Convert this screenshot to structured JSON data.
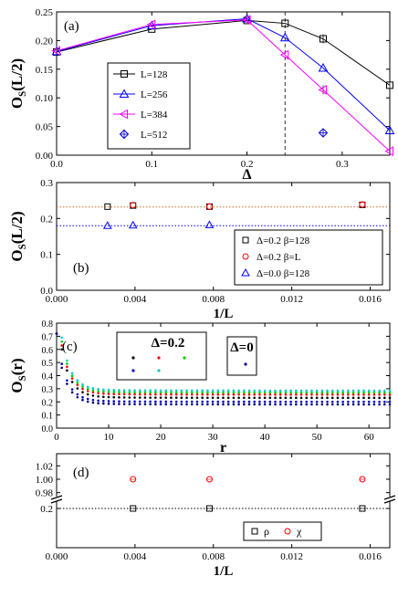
{
  "chart_data": [
    {
      "panel": "(a)",
      "type": "line",
      "xlabel": "Δ",
      "ylabel": "O_S(L/2)",
      "xlim": [
        0.0,
        0.35
      ],
      "ylim": [
        0.0,
        0.25
      ],
      "xticks": [
        0.0,
        0.1,
        0.2,
        0.3
      ],
      "yticks": [
        0.0,
        0.05,
        0.1,
        0.15,
        0.2,
        0.25
      ],
      "vline_x": 0.24,
      "legend_position": "center-left",
      "series": [
        {
          "name": "L=128",
          "color": "#000000",
          "marker": "square",
          "x": [
            0.0,
            0.1,
            0.2,
            0.24,
            0.28,
            0.35
          ],
          "y": [
            0.18,
            0.22,
            0.235,
            0.23,
            0.203,
            0.122
          ]
        },
        {
          "name": "L=256",
          "color": "#0000ff",
          "marker": "triangle-up",
          "x": [
            0.0,
            0.1,
            0.2,
            0.24,
            0.28,
            0.35
          ],
          "y": [
            0.181,
            0.226,
            0.238,
            0.205,
            0.152,
            0.043
          ]
        },
        {
          "name": "L=384",
          "color": "#ff00ff",
          "marker": "triangle-left",
          "x": [
            0.0,
            0.1,
            0.2,
            0.24,
            0.28,
            0.35
          ],
          "y": [
            0.182,
            0.228,
            0.236,
            0.175,
            0.114,
            0.007
          ]
        },
        {
          "name": "L=512",
          "color": "#0000cc",
          "marker": "diamond",
          "x": [
            0.28
          ],
          "y": [
            0.039
          ]
        }
      ]
    },
    {
      "panel": "(b)",
      "type": "scatter",
      "xlabel": "1/L",
      "ylabel": "O_S(L/2)",
      "xlim": [
        0.0,
        0.017
      ],
      "ylim": [
        0.0,
        0.3
      ],
      "xticks": [
        0.0,
        0.004,
        0.008,
        0.012,
        0.016
      ],
      "xtick_labels": [
        "0.000",
        "0.004",
        "0.008",
        "0.012",
        "0.016"
      ],
      "yticks": [
        0.0,
        0.1,
        0.2,
        0.3
      ],
      "hlines": [
        {
          "y": 0.232,
          "color": "#d2691e"
        },
        {
          "y": 0.18,
          "color": "#0000ff"
        }
      ],
      "legend_position": "bottom-right",
      "series": [
        {
          "name": "Δ=0.2 β=128",
          "color": "#000000",
          "marker": "square",
          "x": [
            0.0026,
            0.0039,
            0.0078,
            0.0156
          ],
          "y": [
            0.233,
            0.236,
            0.233,
            0.238
          ]
        },
        {
          "name": "Δ=0.2 β=L",
          "color": "#ff0000",
          "marker": "circle",
          "x": [
            0.0039,
            0.0078,
            0.0156
          ],
          "y": [
            0.237,
            0.233,
            0.239
          ]
        },
        {
          "name": "Δ=0.0 β=128",
          "color": "#0000ff",
          "marker": "triangle-up",
          "x": [
            0.0026,
            0.0039,
            0.0078
          ],
          "y": [
            0.18,
            0.181,
            0.182
          ]
        }
      ]
    },
    {
      "panel": "(c)",
      "type": "scatter",
      "xlabel": "r",
      "ylabel": "O_S(r)",
      "xlim": [
        0,
        64
      ],
      "ylim": [
        0.0,
        0.8
      ],
      "xticks": [
        0,
        10,
        20,
        30,
        40,
        50,
        60
      ],
      "yticks": [
        0.0,
        0.1,
        0.2,
        0.3,
        0.4,
        0.5,
        0.6,
        0.7,
        0.8
      ],
      "legend_groups": [
        "Δ=0.2",
        "Δ=0"
      ],
      "series": [
        {
          "color": "#000000",
          "r0": 0.56,
          "plateau": 0.23
        },
        {
          "color": "#ff0000",
          "r0": 0.59,
          "plateau": 0.255
        },
        {
          "color": "#00cc00",
          "r0": 0.62,
          "plateau": 0.27
        },
        {
          "color": "#0000cc",
          "r0": 0.45,
          "plateau": 0.2
        },
        {
          "color": "#00cccc",
          "r0": 0.65,
          "plateau": 0.285
        },
        {
          "color": "#000080",
          "r0": 0.42,
          "plateau": 0.18
        }
      ]
    },
    {
      "panel": "(d)",
      "type": "scatter",
      "xlabel": "1/L",
      "xlim": [
        0.0,
        0.017
      ],
      "xticks": [
        0.0,
        0.004,
        0.008,
        0.012,
        0.016
      ],
      "xtick_labels": [
        "0.000",
        "0.004",
        "0.008",
        "0.012",
        "0.016"
      ],
      "yticks_upper": [
        0.98,
        1.0,
        1.02
      ],
      "yticks_lower": [
        0.2
      ],
      "ytick_labels_upper": [
        "0.98",
        "1.00",
        "1.02"
      ],
      "ytick_labels_lower": [
        "0.2"
      ],
      "broken_axis": true,
      "hline_y": 0.2,
      "legend_position": "bottom-right",
      "series": [
        {
          "name": "ρ",
          "color": "#000000",
          "marker": "square",
          "x": [
            0.0039,
            0.0078,
            0.0156
          ],
          "y": [
            0.2,
            0.2,
            0.2
          ]
        },
        {
          "name": "χ",
          "color": "#ff0000",
          "marker": "circle",
          "x": [
            0.0039,
            0.0078,
            0.0156
          ],
          "y": [
            1.0,
            1.0,
            1.0
          ]
        }
      ]
    }
  ]
}
